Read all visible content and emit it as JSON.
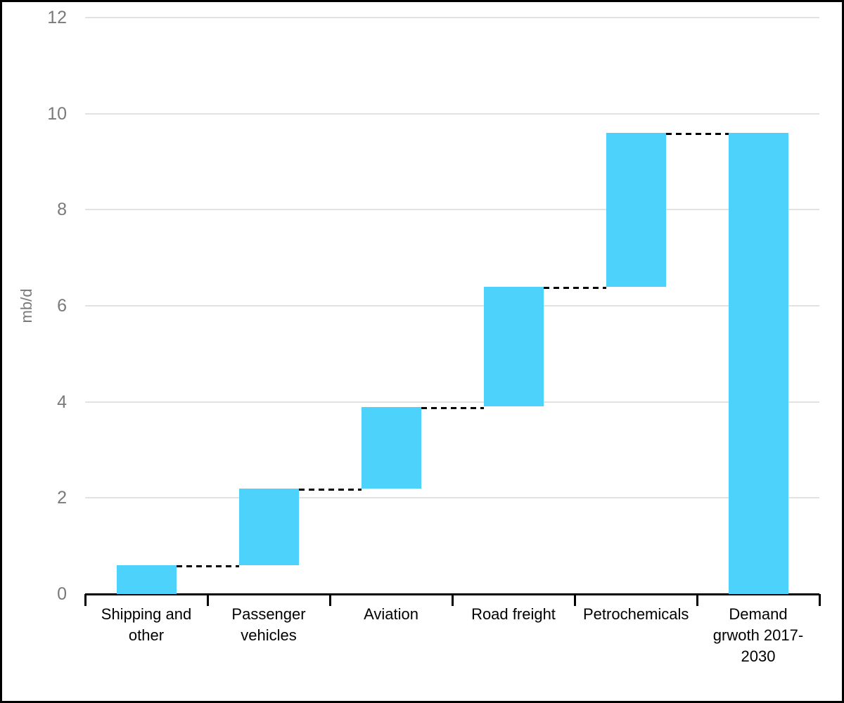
{
  "chart_data": {
    "type": "waterfall",
    "title": "",
    "ylabel": "mb/d",
    "xlabel": "",
    "ylim": [
      0,
      12
    ],
    "yticks": [
      0,
      2,
      4,
      6,
      8,
      10,
      12
    ],
    "grid": "horizontal",
    "legend": "none",
    "connector_style": "dashed",
    "categories": [
      "Shipping and other",
      "Passenger vehicles",
      "Aviation",
      "Road freight",
      "Petrochemicals",
      "Demand grwoth 2017-2030"
    ],
    "bars": [
      {
        "label": "Shipping and other",
        "start": 0,
        "end": 0.6,
        "increment": 0.6
      },
      {
        "label": "Passenger vehicles",
        "start": 0.6,
        "end": 2.2,
        "increment": 1.6
      },
      {
        "label": "Aviation",
        "start": 2.2,
        "end": 3.9,
        "increment": 1.7
      },
      {
        "label": "Road freight",
        "start": 3.9,
        "end": 6.4,
        "increment": 2.5
      },
      {
        "label": "Petrochemicals",
        "start": 6.4,
        "end": 9.6,
        "increment": 3.2
      },
      {
        "label": "Demand grwoth 2017-2030",
        "start": 0,
        "end": 9.6,
        "increment": 9.6,
        "is_total": true
      }
    ],
    "connector_levels": [
      0.6,
      2.2,
      3.9,
      6.4,
      9.6
    ],
    "colors": {
      "bar": "#4DD2FC",
      "gridline": "#E2E2E2",
      "axis_line": "#000000",
      "tick_label": "#7A7A7A",
      "category_label": "#000000",
      "connector": "#000000",
      "background": "#FFFFFF",
      "border": "#000000"
    }
  }
}
